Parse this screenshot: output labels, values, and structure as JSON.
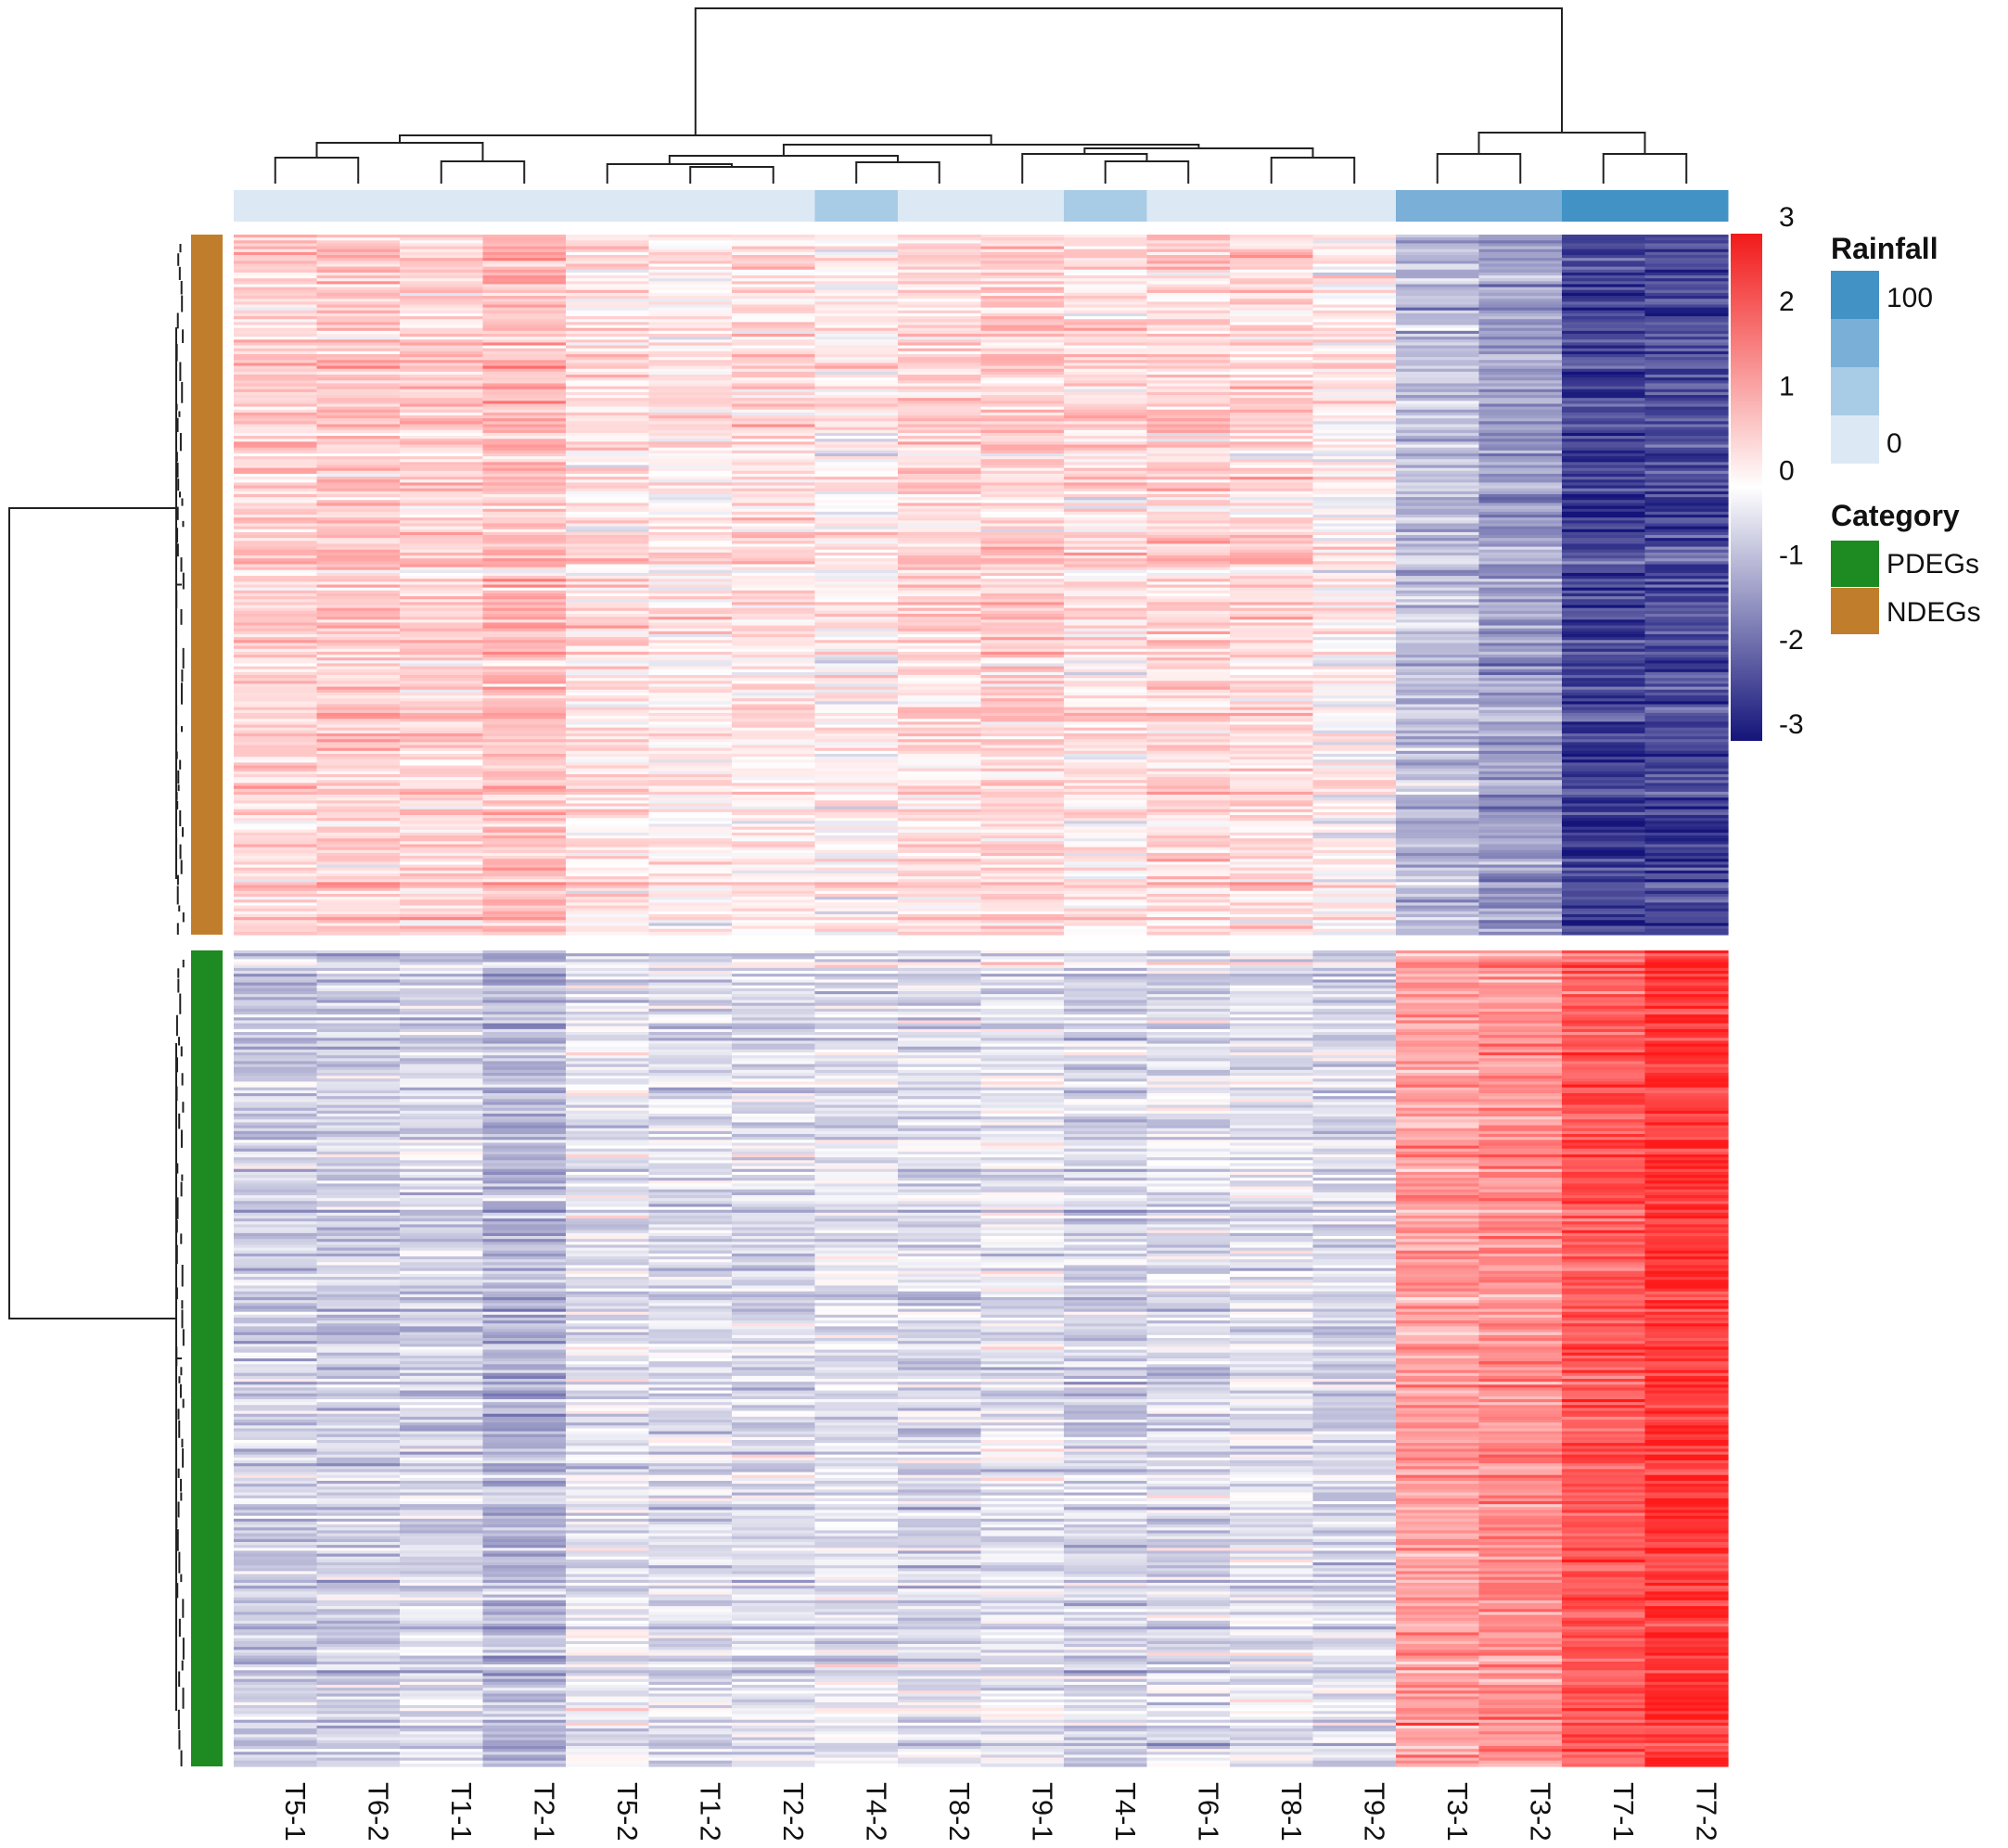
{
  "chart_data": {
    "type": "heatmap",
    "title": "",
    "samples": [
      "T5-1",
      "T6-2",
      "T1-1",
      "T2-1",
      "T5-2",
      "T1-2",
      "T2-2",
      "T4-2",
      "T8-2",
      "T9-1",
      "T4-1",
      "T6-1",
      "T8-1",
      "T9-2",
      "T3-1",
      "T3-2",
      "T7-1",
      "T7-2"
    ],
    "rainfall_level": [
      0,
      0,
      0,
      0,
      0,
      0,
      0,
      1,
      0,
      0,
      1,
      0,
      0,
      0,
      2,
      2,
      3,
      3
    ],
    "row_groups": [
      {
        "name": "NDEGs",
        "rows": 240,
        "color": "#c07e2c",
        "column_mean_z": [
          0.6,
          0.7,
          0.6,
          0.9,
          0.4,
          0.3,
          0.4,
          0.2,
          0.5,
          0.6,
          0.4,
          0.6,
          0.5,
          0.2,
          -0.8,
          -1.2,
          -2.4,
          -2.3
        ]
      },
      {
        "name": "PDEGs",
        "rows": 280,
        "color": "#1e8a22",
        "column_mean_z": [
          -0.6,
          -0.6,
          -0.5,
          -0.9,
          -0.3,
          -0.4,
          -0.4,
          -0.3,
          -0.4,
          -0.3,
          -0.5,
          -0.4,
          -0.3,
          -0.5,
          1.3,
          1.5,
          2.2,
          2.7
        ]
      }
    ],
    "color_scale": {
      "min": -3,
      "max": 3,
      "low": "#14147a",
      "mid": "#ffffff",
      "high": "#f21a1a",
      "ticks": [
        "3",
        "2",
        "1",
        "0",
        "-1",
        "-2",
        "-3"
      ]
    },
    "legends": {
      "rainfall": {
        "title": "Rainfall",
        "labels": [
          "100",
          "0"
        ],
        "colors": [
          "#4292c6",
          "#7ab0d8",
          "#a9cce6",
          "#dce9f5"
        ]
      },
      "category": {
        "title": "Category",
        "items": [
          {
            "label": "PDEGs",
            "color": "#1e8a22"
          },
          {
            "label": "NDEGs",
            "color": "#c07e2c"
          }
        ]
      }
    }
  }
}
